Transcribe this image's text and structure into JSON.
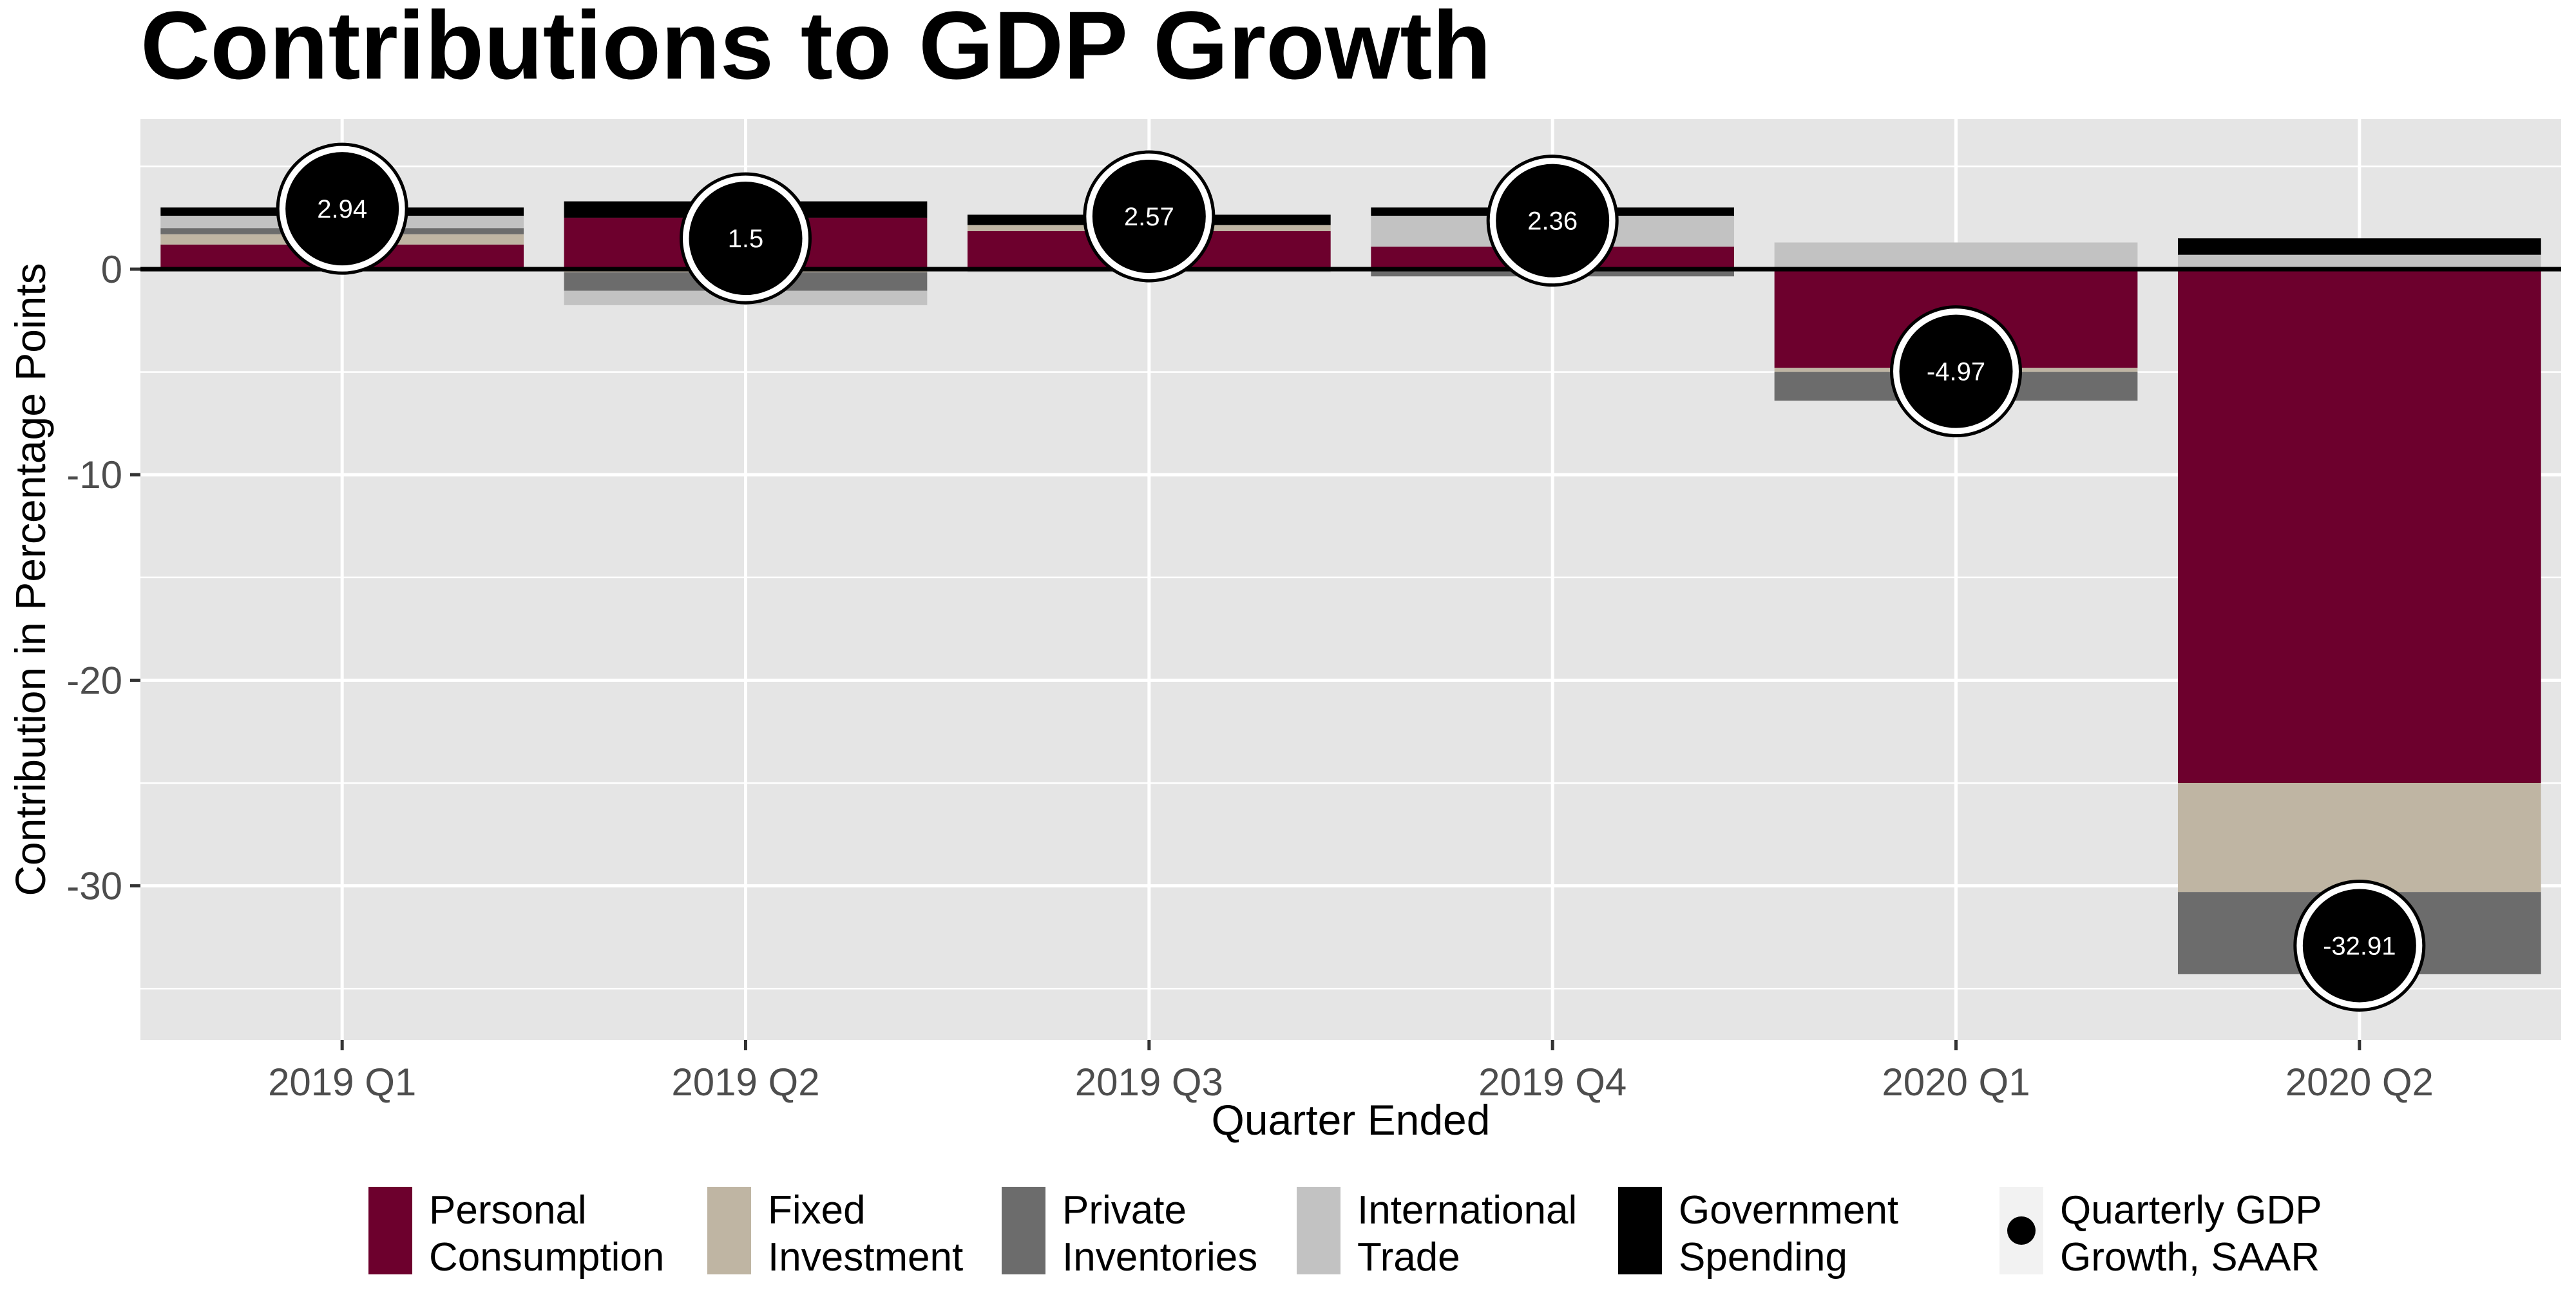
{
  "chart_data": {
    "type": "bar",
    "stacked": true,
    "title": "Contributions to GDP Growth",
    "xlabel": "Quarter Ended",
    "ylabel": "Contribution in Percentage Points",
    "categories": [
      "2019 Q1",
      "2019 Q2",
      "2019 Q3",
      "2019 Q4",
      "2020 Q1",
      "2020 Q2"
    ],
    "ylim": [
      -37.5,
      7.3
    ],
    "yticks": [
      0,
      -10,
      -20,
      -30
    ],
    "grid": true,
    "legend_position": "bottom",
    "series": [
      {
        "name": "Personal Consumption",
        "legend_lines": [
          "Personal",
          "Consumption"
        ],
        "color": "#6d002d",
        "values": [
          1.2,
          2.5,
          1.85,
          1.1,
          -4.8,
          -25.0
        ]
      },
      {
        "name": "Fixed Investment",
        "legend_lines": [
          "Fixed",
          "Investment"
        ],
        "color": "#bfb5a3",
        "values": [
          0.5,
          -0.15,
          0.3,
          -0.05,
          -0.2,
          -5.3
        ]
      },
      {
        "name": "Private Inventories",
        "legend_lines": [
          "Private",
          "Inventories"
        ],
        "color": "#6c6c6c",
        "values": [
          0.3,
          -0.9,
          -0.05,
          -0.3,
          -1.4,
          -4.0
        ]
      },
      {
        "name": "International Trade",
        "legend_lines": [
          "International",
          "Trade"
        ],
        "color": "#c2c2c2",
        "values": [
          0.6,
          -0.7,
          -0.1,
          1.5,
          1.3,
          0.7
        ]
      },
      {
        "name": "Government Spending",
        "legend_lines": [
          "Government",
          "Spending"
        ],
        "color": "#000000",
        "values": [
          0.4,
          0.8,
          0.5,
          0.4,
          0.0,
          0.8
        ]
      }
    ],
    "gdp_growth": {
      "name": "Quarterly GDP Growth, SAAR",
      "legend_lines": [
        "Quarterly GDP",
        "Growth, SAAR"
      ],
      "values": [
        2.94,
        1.5,
        2.57,
        2.36,
        -4.97,
        -32.91
      ],
      "labels": [
        "2.94",
        "1.5",
        "2.57",
        "2.36",
        "-4.97",
        "-32.91"
      ]
    }
  }
}
